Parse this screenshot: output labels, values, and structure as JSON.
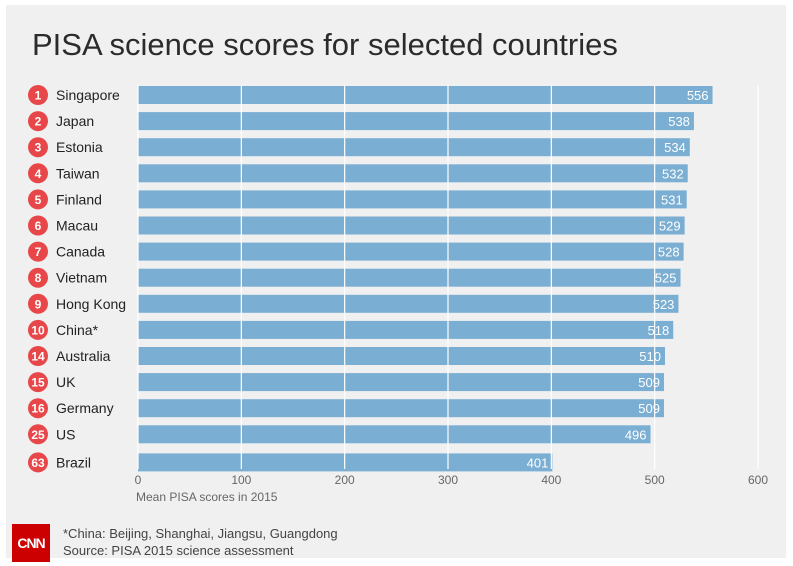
{
  "chart_data": {
    "type": "bar",
    "orientation": "horizontal",
    "title": "PISA science scores for selected countries",
    "xlabel": "Mean PISA scores in 2015",
    "ylabel": "",
    "xlim": [
      0,
      600
    ],
    "xticks": [
      "0",
      "100",
      "200",
      "300",
      "400",
      "500",
      "600"
    ],
    "grid": true,
    "categories": [
      "Singapore",
      "Japan",
      "Estonia",
      "Taiwan",
      "Finland",
      "Macau",
      "Canada",
      "Vietnam",
      "Hong Kong",
      "China*",
      "Australia",
      "UK",
      "Germany",
      "US",
      "Brazil"
    ],
    "ranks": [
      "1",
      "2",
      "3",
      "4",
      "5",
      "6",
      "7",
      "8",
      "9",
      "10",
      "14",
      "15",
      "16",
      "25",
      "63"
    ],
    "values": [
      556,
      538,
      534,
      532,
      531,
      529,
      528,
      525,
      523,
      518,
      510,
      509,
      509,
      496,
      401
    ],
    "bar_color": "#7aaed2",
    "rank_badge_color": "#e8474a",
    "gridline_color": "#ffffff"
  },
  "footer": {
    "logo_text": "CNN",
    "note": "*China: Beijing, Shanghai, Jiangsu, Guangdong",
    "source": "Source: PISA 2015 science assessment"
  },
  "colors": {
    "background": "#f0f0f0",
    "brand_red": "#cc0000"
  }
}
